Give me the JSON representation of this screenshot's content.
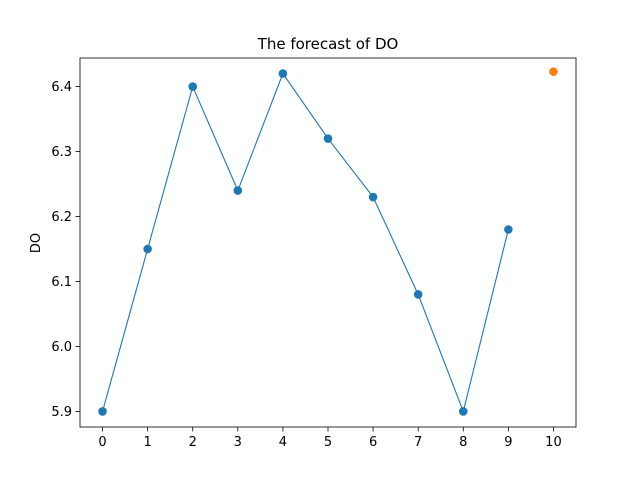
{
  "chart_data": {
    "type": "line",
    "title": "The forecast of DO",
    "xlabel": "",
    "ylabel": "DO",
    "x_ticks": [
      "0",
      "1",
      "2",
      "3",
      "4",
      "5",
      "6",
      "7",
      "8",
      "9",
      "10"
    ],
    "y_ticks": [
      "5.9",
      "6.0",
      "6.1",
      "6.2",
      "6.3",
      "6.4"
    ],
    "xlim": [
      -0.5,
      10.5
    ],
    "ylim": [
      5.876,
      6.444
    ],
    "grid": false,
    "series": [
      {
        "color": "#1f77b4",
        "marker": "circle",
        "line": true,
        "x": [
          0,
          1,
          2,
          3,
          4,
          5,
          6,
          7,
          8,
          9
        ],
        "y": [
          5.9,
          6.15,
          6.4,
          6.24,
          6.42,
          6.32,
          6.23,
          6.08,
          5.9,
          6.18
        ]
      },
      {
        "color": "#ff7f0e",
        "marker": "circle",
        "line": false,
        "x": [
          10
        ],
        "y": [
          6.423
        ]
      }
    ]
  }
}
